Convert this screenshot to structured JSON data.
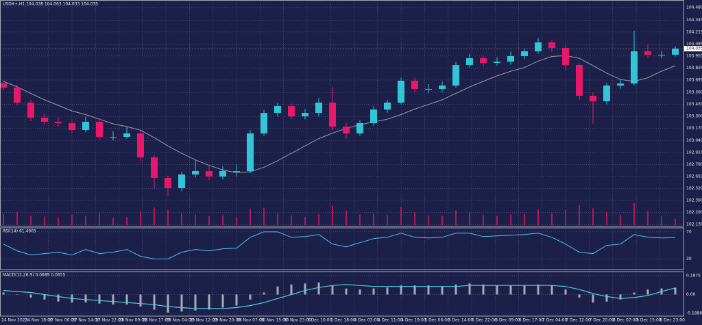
{
  "chart_data": {
    "type": "candlestick",
    "title": "USDX+,H1  104.038 104.063 104.033 104.035",
    "bull_color": "#2fc7d8",
    "bear_color": "#e8176b",
    "ma_color": "#9c9cab",
    "volume_color": "#b0175f",
    "grid": true,
    "ylim": [
      102.115,
      104.562
    ],
    "yticks": [
      {
        "value": 104.48,
        "label": "104.480"
      },
      104.345,
      104.215,
      104.085,
      103.955,
      103.825,
      103.695,
      {
        "value": 103.56,
        "label": "103.560"
      },
      {
        "value": 103.43,
        "label": "103.430"
      },
      {
        "value": 103.3,
        "label": "103.300"
      },
      {
        "value": 103.17,
        "label": "103.170"
      },
      {
        "value": 103.04,
        "label": "103.040"
      },
      {
        "value": 102.91,
        "label": "102.910"
      },
      {
        "value": 102.78,
        "label": "102.780"
      },
      {
        "value": 102.65,
        "label": "102.650"
      },
      {
        "value": 102.52,
        "label": "102.520"
      },
      {
        "value": 102.39,
        "label": "102.390"
      },
      {
        "value": 102.26,
        "label": "102.260"
      },
      {
        "value": 102.13,
        "label": "102.130"
      }
    ],
    "last_price": 104.035,
    "x_labels": [
      "24 Nov 2023",
      "24 Nov 18:00",
      "27 Nov 06:00",
      "27 Nov 14:00",
      "27 Nov 22:00",
      "28 Nov 09:00",
      "28 Nov 17:00",
      "29 Nov 04:00",
      "29 Nov 12:00",
      "29 Nov 20:00",
      "30 Nov 07:00",
      "30 Nov 15:00",
      "30 Nov 23:00",
      "1 Dec 10:00",
      "1 Dec 18:00",
      "4 Dec 03:00",
      "4 Dec 11:00",
      "4 Dec 19:00",
      "5 Dec 06:00",
      "5 Dec 14:00",
      "5 Dec 22:00",
      "6 Dec 09:00",
      "6 Dec 17:00",
      "7 Dec 04:00",
      "7 Dec 12:00",
      "7 Dec 20:00",
      "8 Dec 07:00",
      "8 Dec 15:00",
      "8 Dec 23:00"
    ],
    "open": [
      103.66,
      103.613,
      103.45,
      103.287,
      103.242,
      103.227,
      103.153,
      103.242,
      103.079,
      103.079,
      103.116,
      102.857,
      102.634,
      102.523,
      102.671,
      102.708,
      102.649,
      102.708,
      102.708,
      103.116,
      103.338,
      103.413,
      103.301,
      103.338,
      103.45,
      103.19,
      103.116,
      103.227,
      103.375,
      103.45,
      103.687,
      103.598,
      103.598,
      103.635,
      103.857,
      103.931,
      103.88,
      103.894,
      103.954,
      104.006,
      104.102,
      104.043,
      103.857,
      103.524,
      103.464,
      103.635,
      103.657,
      104.006,
      103.969,
      103.969
    ],
    "high": [
      103.69,
      103.64,
      103.48,
      103.33,
      103.29,
      103.26,
      103.3,
      103.28,
      103.14,
      103.19,
      103.14,
      102.88,
      102.66,
      102.7,
      102.83,
      102.78,
      102.76,
      102.78,
      103.15,
      103.37,
      103.45,
      103.44,
      103.38,
      103.5,
      103.62,
      103.23,
      103.26,
      103.41,
      103.48,
      103.72,
      103.72,
      103.65,
      103.68,
      103.89,
      103.98,
      103.96,
      103.94,
      104.0,
      104.04,
      104.15,
      104.13,
      104.07,
      103.88,
      103.56,
      103.66,
      103.7,
      104.23,
      104.08,
      104.01,
      104.063
    ],
    "low": [
      103.58,
      103.42,
      103.25,
      103.21,
      103.19,
      103.12,
      103.13,
      103.05,
      103.04,
      103.06,
      102.82,
      102.52,
      102.44,
      102.49,
      102.64,
      102.61,
      102.62,
      102.65,
      102.69,
      103.09,
      103.3,
      103.27,
      103.27,
      103.3,
      103.15,
      103.06,
      103.09,
      103.2,
      103.34,
      103.43,
      103.56,
      103.55,
      103.56,
      103.61,
      103.83,
      103.84,
      103.85,
      103.86,
      103.92,
      103.98,
      104.0,
      103.8,
      103.48,
      103.22,
      103.43,
      103.6,
      103.64,
      103.93,
      103.93,
      103.95
    ],
    "close": [
      103.613,
      103.45,
      103.287,
      103.242,
      103.227,
      103.153,
      103.242,
      103.079,
      103.079,
      103.116,
      102.857,
      102.634,
      102.523,
      102.671,
      102.708,
      102.649,
      102.708,
      102.708,
      103.116,
      103.338,
      103.413,
      103.301,
      103.338,
      103.45,
      103.19,
      103.116,
      103.227,
      103.375,
      103.45,
      103.687,
      103.598,
      103.598,
      103.635,
      103.857,
      103.931,
      103.88,
      103.894,
      103.954,
      104.006,
      104.102,
      104.043,
      103.857,
      103.524,
      103.464,
      103.635,
      103.657,
      104.006,
      103.969,
      103.969,
      104.035
    ],
    "ma": [
      103.68,
      103.62,
      103.55,
      103.48,
      103.42,
      103.36,
      103.32,
      103.27,
      103.22,
      103.19,
      103.15,
      103.07,
      102.98,
      102.9,
      102.83,
      102.77,
      102.72,
      102.69,
      102.7,
      102.75,
      102.82,
      102.9,
      102.98,
      103.06,
      103.12,
      103.17,
      103.21,
      103.24,
      103.27,
      103.32,
      103.38,
      103.43,
      103.48,
      103.55,
      103.62,
      103.68,
      103.74,
      103.79,
      103.83,
      103.9,
      103.95,
      103.96,
      103.93,
      103.85,
      103.77,
      103.7,
      103.68,
      103.72,
      103.79,
      103.85
    ],
    "volumes": [
      2600,
      3100,
      2200,
      2000,
      1800,
      2400,
      2100,
      2900,
      1700,
      1900,
      3300,
      4200,
      3600,
      2800,
      2500,
      2100,
      2300,
      1900,
      3900,
      4100,
      2700,
      2300,
      2000,
      2600,
      4600,
      3400,
      2500,
      2700,
      2400,
      4300,
      3000,
      2300,
      2200,
      3500,
      3100,
      2400,
      2200,
      2500,
      2600,
      3700,
      2800,
      3600,
      4800,
      4000,
      3100,
      2400,
      5200,
      3300,
      2100,
      1500
    ],
    "rsi": {
      "label": "RSI(14) 61.4905",
      "color": "#4fc3e8",
      "ylim": [
        14.4,
        75.9
      ],
      "yticks": [
        70,
        30
      ],
      "values": [
        52,
        42,
        36,
        38,
        40,
        36,
        44,
        38,
        40,
        44,
        34,
        30,
        30,
        40,
        44,
        42,
        45,
        46,
        62,
        70,
        70,
        62,
        63,
        66,
        52,
        48,
        54,
        60,
        62,
        68,
        62,
        61,
        62,
        68,
        68,
        63,
        64,
        65,
        66,
        68,
        62,
        52,
        40,
        38,
        50,
        52,
        66,
        62,
        61,
        61.4905
      ]
    },
    "macd": {
      "label": "MACD(12,26,9) 0.0689 0.0655",
      "hist_color": "#a8aab8",
      "signal_color": "#4dd0e1",
      "ylim": [
        -0.215,
        0.228
      ],
      "yticks": [
        0.1875,
        {
          "value": 0,
          "label": "0.00"
        },
        -0.1886
      ],
      "values": [
        0.02,
        0,
        -0.03,
        -0.05,
        -0.07,
        -0.08,
        -0.08,
        -0.09,
        -0.1,
        -0.1,
        -0.12,
        -0.15,
        -0.18,
        -0.17,
        -0.16,
        -0.15,
        -0.13,
        -0.11,
        -0.05,
        0.02,
        0.08,
        0.1,
        0.11,
        0.12,
        0.09,
        0.06,
        0.05,
        0.06,
        0.07,
        0.09,
        0.09,
        0.09,
        0.08,
        0.1,
        0.11,
        0.1,
        0.09,
        0.09,
        0.09,
        0.1,
        0.09,
        0.05,
        -0.03,
        -0.08,
        -0.07,
        -0.05,
        0.02,
        0.05,
        0.06,
        0.0689
      ],
      "signal": [
        0.04,
        0.03,
        0.02,
        0,
        -0.02,
        -0.04,
        -0.05,
        -0.06,
        -0.07,
        -0.08,
        -0.09,
        -0.1,
        -0.12,
        -0.13,
        -0.14,
        -0.14,
        -0.14,
        -0.13,
        -0.11,
        -0.08,
        -0.04,
        0,
        0.04,
        0.07,
        0.09,
        0.1,
        0.09,
        0.08,
        0.08,
        0.08,
        0.08,
        0.08,
        0.08,
        0.08,
        0.09,
        0.09,
        0.09,
        0.09,
        0.09,
        0.09,
        0.09,
        0.08,
        0.05,
        0.01,
        -0.02,
        -0.04,
        -0.03,
        -0.01,
        0.03,
        0.0655
      ]
    }
  }
}
